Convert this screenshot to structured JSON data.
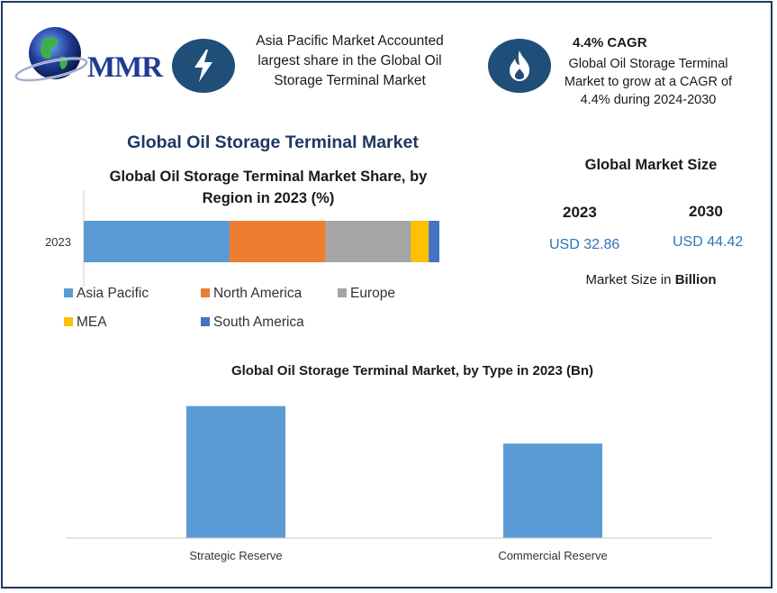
{
  "header": {
    "logo_text": "MMR",
    "highlight_1": {
      "icon": "lightning-icon",
      "line1": "Asia Pacific Market Accounted",
      "line2": "largest share in the Global Oil",
      "line3": "Storage Terminal Market"
    },
    "highlight_2": {
      "icon": "flame-icon",
      "title": "4.4% CAGR",
      "line1": "Global Oil Storage Terminal",
      "line2": "Market to grow at a CAGR of",
      "line3": "4.4% during 2024-2030"
    }
  },
  "main_title": "Global Oil Storage Terminal Market",
  "market_size": {
    "title": "Global Market Size",
    "year_a": "2023",
    "value_a": "USD 32.86",
    "year_b": "2030",
    "value_b": "USD 44.42",
    "unit_prefix": "Market Size in ",
    "unit_bold": "Billion"
  },
  "colors": {
    "asia_pacific": "#5b9bd5",
    "north_america": "#ed7d31",
    "europe": "#a5a5a5",
    "mea": "#ffc000",
    "south_america": "#4472c4",
    "brand_navy": "#1f4e79",
    "value_blue": "#2e75b6"
  },
  "chart_data": [
    {
      "type": "bar",
      "orientation": "horizontal-stacked",
      "title_line1": "Global Oil Storage Terminal Market Share, by",
      "title_line2": "Region in 2023 (%)",
      "categories": [
        "2023"
      ],
      "series": [
        {
          "name": "Asia Pacific",
          "values": [
            41
          ]
        },
        {
          "name": "North America",
          "values": [
            27
          ]
        },
        {
          "name": "Europe",
          "values": [
            24
          ]
        },
        {
          "name": "MEA",
          "values": [
            5
          ]
        },
        {
          "name": "South America",
          "values": [
            3
          ]
        }
      ],
      "xlim": [
        0,
        100
      ],
      "grid": false,
      "legend_position": "bottom"
    },
    {
      "type": "bar",
      "title": "Global Oil Storage Terminal Market, by Type in 2023 (Bn)",
      "categories": [
        "Strategic Reserve",
        "Commercial Reserve"
      ],
      "values": [
        18.3,
        13.1
      ],
      "ylim": [
        0,
        20
      ],
      "grid": false
    }
  ]
}
